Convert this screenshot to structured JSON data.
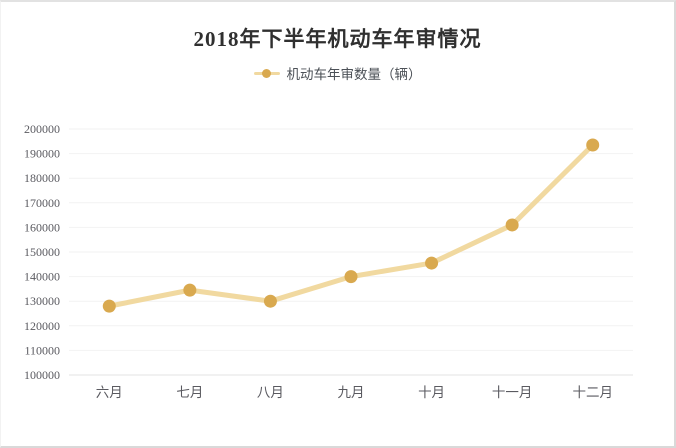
{
  "page": {
    "background": "#ffffff",
    "border_color": "#d9d9d9"
  },
  "chart_data": {
    "type": "line",
    "title": "2018年下半年机动车年审情况",
    "legend": [
      {
        "label": "机动车年审数量（辆）"
      }
    ],
    "legend_position": "top",
    "categories": [
      "六月",
      "七月",
      "八月",
      "九月",
      "十月",
      "十一月",
      "十二月"
    ],
    "series": [
      {
        "name": "机动车年审数量（辆）",
        "values": [
          128000,
          134500,
          130000,
          140000,
          145500,
          161000,
          193500
        ]
      }
    ],
    "xlabel": "",
    "ylabel": "",
    "ylim": [
      100000,
      200000
    ],
    "y_step": 10000,
    "y_tick_labels": [
      "100000",
      "110000",
      "120000",
      "130000",
      "140000",
      "150000",
      "160000",
      "170000",
      "180000",
      "190000",
      "200000"
    ],
    "grid": true,
    "colors": {
      "line": "#f1d9a0",
      "marker": "#d9a94f",
      "title_text": "#303030",
      "legend_text": "#4c5157",
      "axis_text": "#5a5a60",
      "gridline": "#f2f2f2",
      "axis_line": "#e3e3e3"
    }
  }
}
